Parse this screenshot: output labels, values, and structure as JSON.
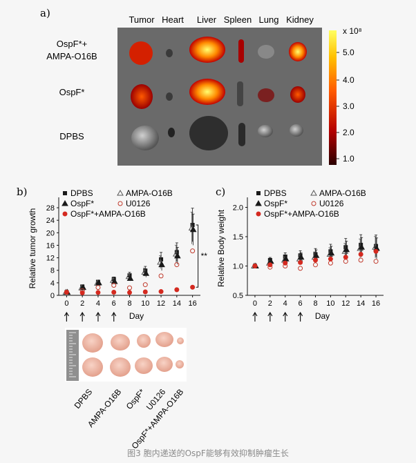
{
  "caption": "图3 胞内递送的OspF能够有效抑制肿瘤生长",
  "panel_a": {
    "label": "a)",
    "columns": [
      "Tumor",
      "Heart",
      "Liver",
      "Spleen",
      "Lung",
      "Kidney"
    ],
    "rows": [
      "OspF*+\nAMPA-O16B",
      "OspF*",
      "DPBS"
    ],
    "colorbar": {
      "unit": "x 10⁸",
      "ticks": [
        "5.0",
        "4.0",
        "3.0",
        "2.0",
        "1.0"
      ]
    }
  },
  "chart_data": [
    {
      "type": "line",
      "panel": "b)",
      "ylabel": "Relative tumor growth",
      "xlabel": "Day",
      "x": [
        0,
        2,
        4,
        6,
        8,
        10,
        12,
        14,
        16
      ],
      "ylim": [
        0,
        30
      ],
      "yticks": [
        "0",
        "4",
        "8",
        "12",
        "16",
        "20",
        "24",
        "28"
      ],
      "legend": [
        "DPBS",
        "AMPA-O16B",
        "OspF*",
        "U0126",
        "OspF*+AMPA-O16B"
      ],
      "annotation": "**",
      "series": [
        {
          "name": "DPBS",
          "values": [
            1,
            2.8,
            4.3,
            5.2,
            6.4,
            7.9,
            11.5,
            13.8,
            22.5
          ]
        },
        {
          "name": "AMPA-O16B",
          "values": [
            1,
            2.4,
            3.9,
            4.8,
            6.0,
            7.4,
            10.6,
            13.2,
            21.5
          ]
        },
        {
          "name": "OspF*",
          "values": [
            1,
            2.5,
            4.0,
            4.4,
            5.4,
            7.0,
            9.8,
            12.6,
            21.0
          ]
        },
        {
          "name": "U0126",
          "values": [
            1,
            1.5,
            2.5,
            3.2,
            2.4,
            3.4,
            6.2,
            9.8,
            14.2
          ]
        },
        {
          "name": "OspF*+AMPA-O16B",
          "values": [
            1,
            0.8,
            0.9,
            1.0,
            0.9,
            1.1,
            1.2,
            1.8,
            2.6
          ]
        }
      ]
    },
    {
      "type": "line",
      "panel": "c)",
      "ylabel": "Relative Body weight",
      "xlabel": "Day",
      "x": [
        0,
        2,
        4,
        6,
        8,
        10,
        12,
        14,
        16
      ],
      "ylim": [
        0.5,
        2.1
      ],
      "yticks": [
        "0.5",
        "1.0",
        "1.5",
        "2.0"
      ],
      "legend": [
        "DPBS",
        "AMPA-O16B",
        "OspF*",
        "U0126",
        "OspF*+AMPA-O16B"
      ],
      "series": [
        {
          "name": "DPBS",
          "values": [
            1,
            1.1,
            1.16,
            1.18,
            1.2,
            1.25,
            1.32,
            1.36,
            1.34
          ]
        },
        {
          "name": "AMPA-O16B",
          "values": [
            1,
            1.05,
            1.1,
            1.12,
            1.15,
            1.2,
            1.25,
            1.3,
            1.32
          ]
        },
        {
          "name": "OspF*",
          "values": [
            1,
            1.08,
            1.12,
            1.15,
            1.18,
            1.22,
            1.28,
            1.32,
            1.3
          ]
        },
        {
          "name": "U0126",
          "values": [
            1,
            0.98,
            1.0,
            0.96,
            1.02,
            1.05,
            1.08,
            1.1,
            1.08
          ]
        },
        {
          "name": "OspF*+AMPA-O16B",
          "values": [
            1,
            1.02,
            1.05,
            1.06,
            1.1,
            1.12,
            1.15,
            1.2,
            1.25
          ]
        }
      ]
    }
  ],
  "photo_labels": [
    "DPBS",
    "AMPA-O16B",
    "OspF*",
    "U0126",
    "OspF*+AMPA-O16B"
  ]
}
